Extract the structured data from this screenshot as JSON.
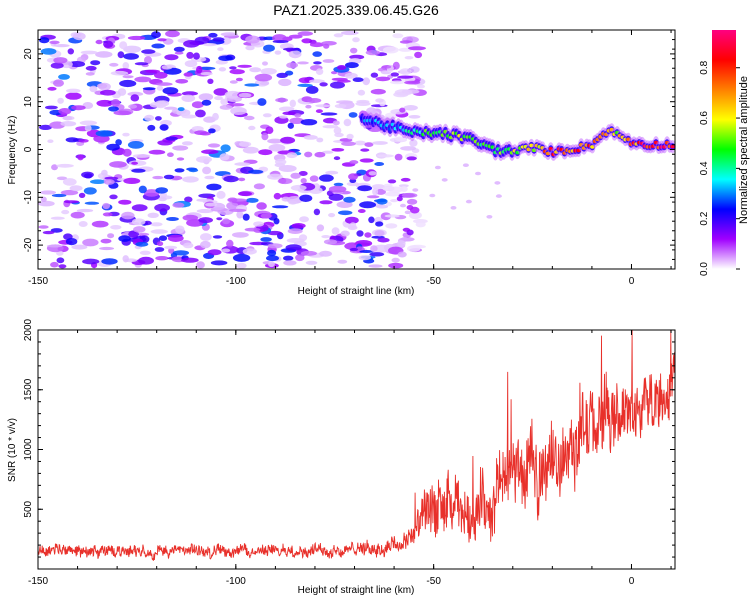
{
  "title": "PAZ1.2025.339.06.45.G26",
  "chart_data": [
    {
      "type": "heatmap",
      "panel": "spectrogram",
      "xlabel": "Height of straight line (km)",
      "ylabel": "Frequency (Hz)",
      "xlim": [
        -150,
        11
      ],
      "ylim": [
        -25,
        25
      ],
      "x_ticks": [
        -150,
        -100,
        -50,
        0
      ],
      "y_ticks": [
        -20,
        -10,
        0,
        10,
        20
      ],
      "colorbar": {
        "label": "Normalized spectral amplitude",
        "range": [
          0,
          0.95
        ],
        "ticks": [
          0.0,
          0.2,
          0.4,
          0.6,
          0.8
        ],
        "colors": [
          "#ffffff",
          "#a000ff",
          "#0000ff",
          "#00ffff",
          "#00ff00",
          "#ffff00",
          "#ff8000",
          "#ff0000",
          "#ff0080"
        ]
      },
      "noise_region": {
        "x_start": -150,
        "x_end": -57,
        "level_min": 0.05,
        "level_max": 0.3
      },
      "signal_ridge": [
        {
          "x": -68,
          "f": 6.5,
          "amp": 0.3
        },
        {
          "x": -62,
          "f": 5.0,
          "amp": 0.35
        },
        {
          "x": -55,
          "f": 3.5,
          "amp": 0.4
        },
        {
          "x": -50,
          "f": 3.5,
          "amp": 0.55
        },
        {
          "x": -45,
          "f": 3.0,
          "amp": 0.6
        },
        {
          "x": -40,
          "f": 2.0,
          "amp": 0.55
        },
        {
          "x": -35,
          "f": 0.0,
          "amp": 0.5
        },
        {
          "x": -30,
          "f": -0.5,
          "amp": 0.6
        },
        {
          "x": -25,
          "f": 0.5,
          "amp": 0.7
        },
        {
          "x": -20,
          "f": -0.5,
          "amp": 0.85
        },
        {
          "x": -15,
          "f": 0.0,
          "amp": 0.85
        },
        {
          "x": -10,
          "f": 1.0,
          "amp": 0.8
        },
        {
          "x": -6,
          "f": 4.0,
          "amp": 0.7
        },
        {
          "x": -3,
          "f": 3.0,
          "amp": 0.65
        },
        {
          "x": 0,
          "f": 1.5,
          "amp": 0.8
        },
        {
          "x": 5,
          "f": 1.0,
          "amp": 0.9
        },
        {
          "x": 11,
          "f": 1.0,
          "amp": 0.92
        }
      ]
    },
    {
      "type": "line",
      "panel": "snr",
      "xlabel": "Height of straight line (km)",
      "ylabel": "SNR (10 * v/v)",
      "xlim": [
        -150,
        11
      ],
      "ylim": [
        0,
        2000
      ],
      "x_ticks": [
        -150,
        -100,
        -50,
        0
      ],
      "y_ticks": [
        500,
        1000,
        1500,
        2000
      ],
      "color": "#e8302a",
      "series_name": "SNR",
      "trend": [
        {
          "x": -150,
          "mean": 150,
          "spread": 80
        },
        {
          "x": -100,
          "mean": 150,
          "spread": 80
        },
        {
          "x": -70,
          "mean": 160,
          "spread": 90
        },
        {
          "x": -58,
          "mean": 200,
          "spread": 110
        },
        {
          "x": -53,
          "mean": 380,
          "spread": 280
        },
        {
          "x": -50,
          "mean": 600,
          "spread": 450
        },
        {
          "x": -45,
          "mean": 450,
          "spread": 380
        },
        {
          "x": -40,
          "mean": 500,
          "spread": 380
        },
        {
          "x": -35,
          "mean": 600,
          "spread": 450
        },
        {
          "x": -30,
          "mean": 800,
          "spread": 480
        },
        {
          "x": -20,
          "mean": 900,
          "spread": 480
        },
        {
          "x": -10,
          "mean": 1150,
          "spread": 480
        },
        {
          "x": 0,
          "mean": 1300,
          "spread": 420
        },
        {
          "x": 5,
          "mean": 1450,
          "spread": 400
        },
        {
          "x": 11,
          "mean": 1550,
          "spread": 350
        }
      ]
    }
  ]
}
